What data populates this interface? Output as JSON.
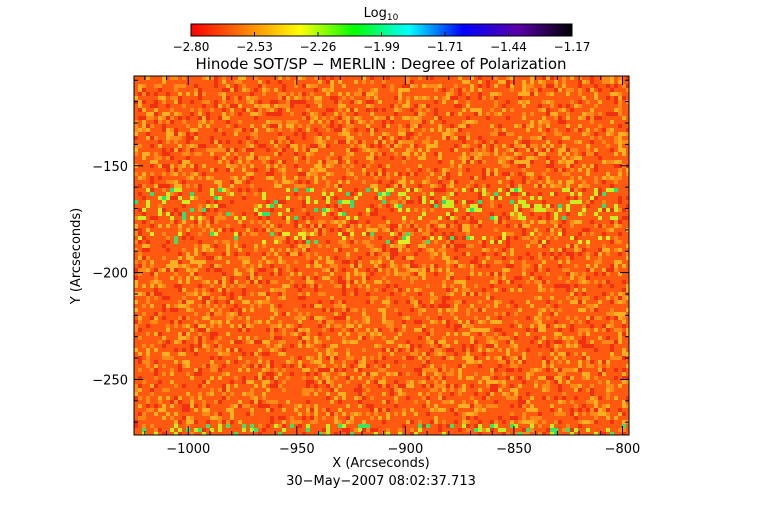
{
  "chart_data": {
    "type": "heatmap",
    "title": "Hinode SOT/SP − MERLIN : Degree of Polarization",
    "xlabel": "X (Arcseconds)",
    "ylabel": "Y (Arcseconds)",
    "footer": "30−May−2007 08:02:37.713",
    "xlim": [
      -1025,
      -797
    ],
    "ylim": [
      -276,
      -108
    ],
    "x_ticks": [
      {
        "value": -1000,
        "label": "−1000"
      },
      {
        "value": -950,
        "label": "−950"
      },
      {
        "value": -900,
        "label": "−900"
      },
      {
        "value": -850,
        "label": "−850"
      },
      {
        "value": -800,
        "label": "−800"
      }
    ],
    "y_ticks": [
      {
        "value": -150,
        "label": "−150"
      },
      {
        "value": -200,
        "label": "−200"
      },
      {
        "value": -250,
        "label": "−250"
      }
    ],
    "colorbar": {
      "title": "Log",
      "title_subscript": "10",
      "range": [
        -2.8,
        -1.17
      ],
      "tick_labels": [
        "−2.80",
        "−2.53",
        "−2.26",
        "−1.99",
        "−1.71",
        "−1.44",
        "−1.17"
      ],
      "colormap": [
        "#ff0000",
        "#ff7f00",
        "#ffff00",
        "#00ff00",
        "#00ffff",
        "#0000ff",
        "#5a00aa",
        "#000000"
      ]
    },
    "field_description": {
      "dominant_level": -2.7,
      "bright_band_y": [
        -175,
        -160
      ],
      "mid_band_y": [
        -185,
        -180
      ],
      "bright_bottom_edge_y": -270
    },
    "grid": false,
    "legend": "none"
  }
}
